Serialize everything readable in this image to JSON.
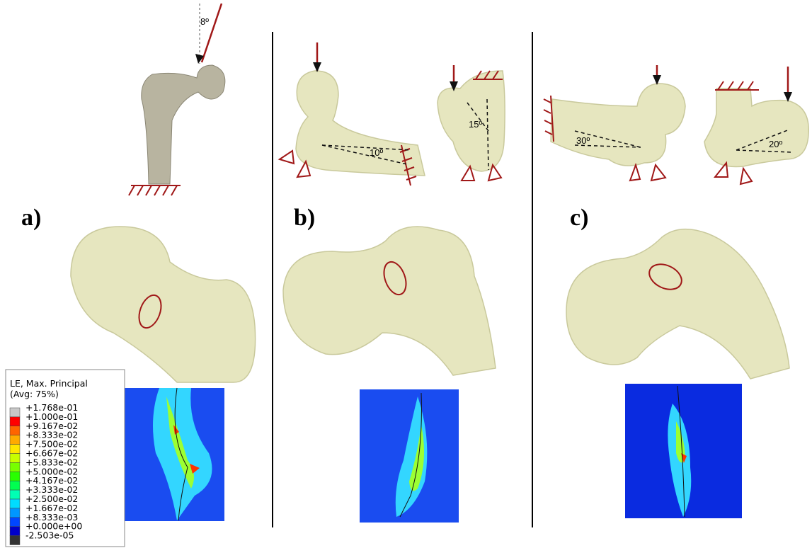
{
  "panels": {
    "a": {
      "label": "a)",
      "angle": "8º"
    },
    "b": {
      "label": "b)",
      "angle1": "10º",
      "angle2": "15º"
    },
    "c": {
      "label": "c)",
      "angle1": "30º",
      "angle2": "20º"
    }
  },
  "legend": {
    "title": "LE, Max. Principal",
    "subtitle": "(Avg: 75%)",
    "entries": [
      "+1.768e-01",
      "+1.000e-01",
      "+9.167e-02",
      "+8.333e-02",
      "+7.500e-02",
      "+6.667e-02",
      "+5.833e-02",
      "+5.000e-02",
      "+4.167e-02",
      "+3.333e-02",
      "+2.500e-02",
      "+1.667e-02",
      "+8.333e-03",
      "+0.000e+00",
      "-2.503e-05"
    ],
    "colors": [
      "#c8c8c8",
      "#ff0000",
      "#ff6400",
      "#ffaa00",
      "#ffe600",
      "#c8ff00",
      "#78ff00",
      "#28ff00",
      "#00ff50",
      "#00ffb4",
      "#00dcff",
      "#0096ff",
      "#0046ff",
      "#0000c8",
      "#333333"
    ]
  }
}
